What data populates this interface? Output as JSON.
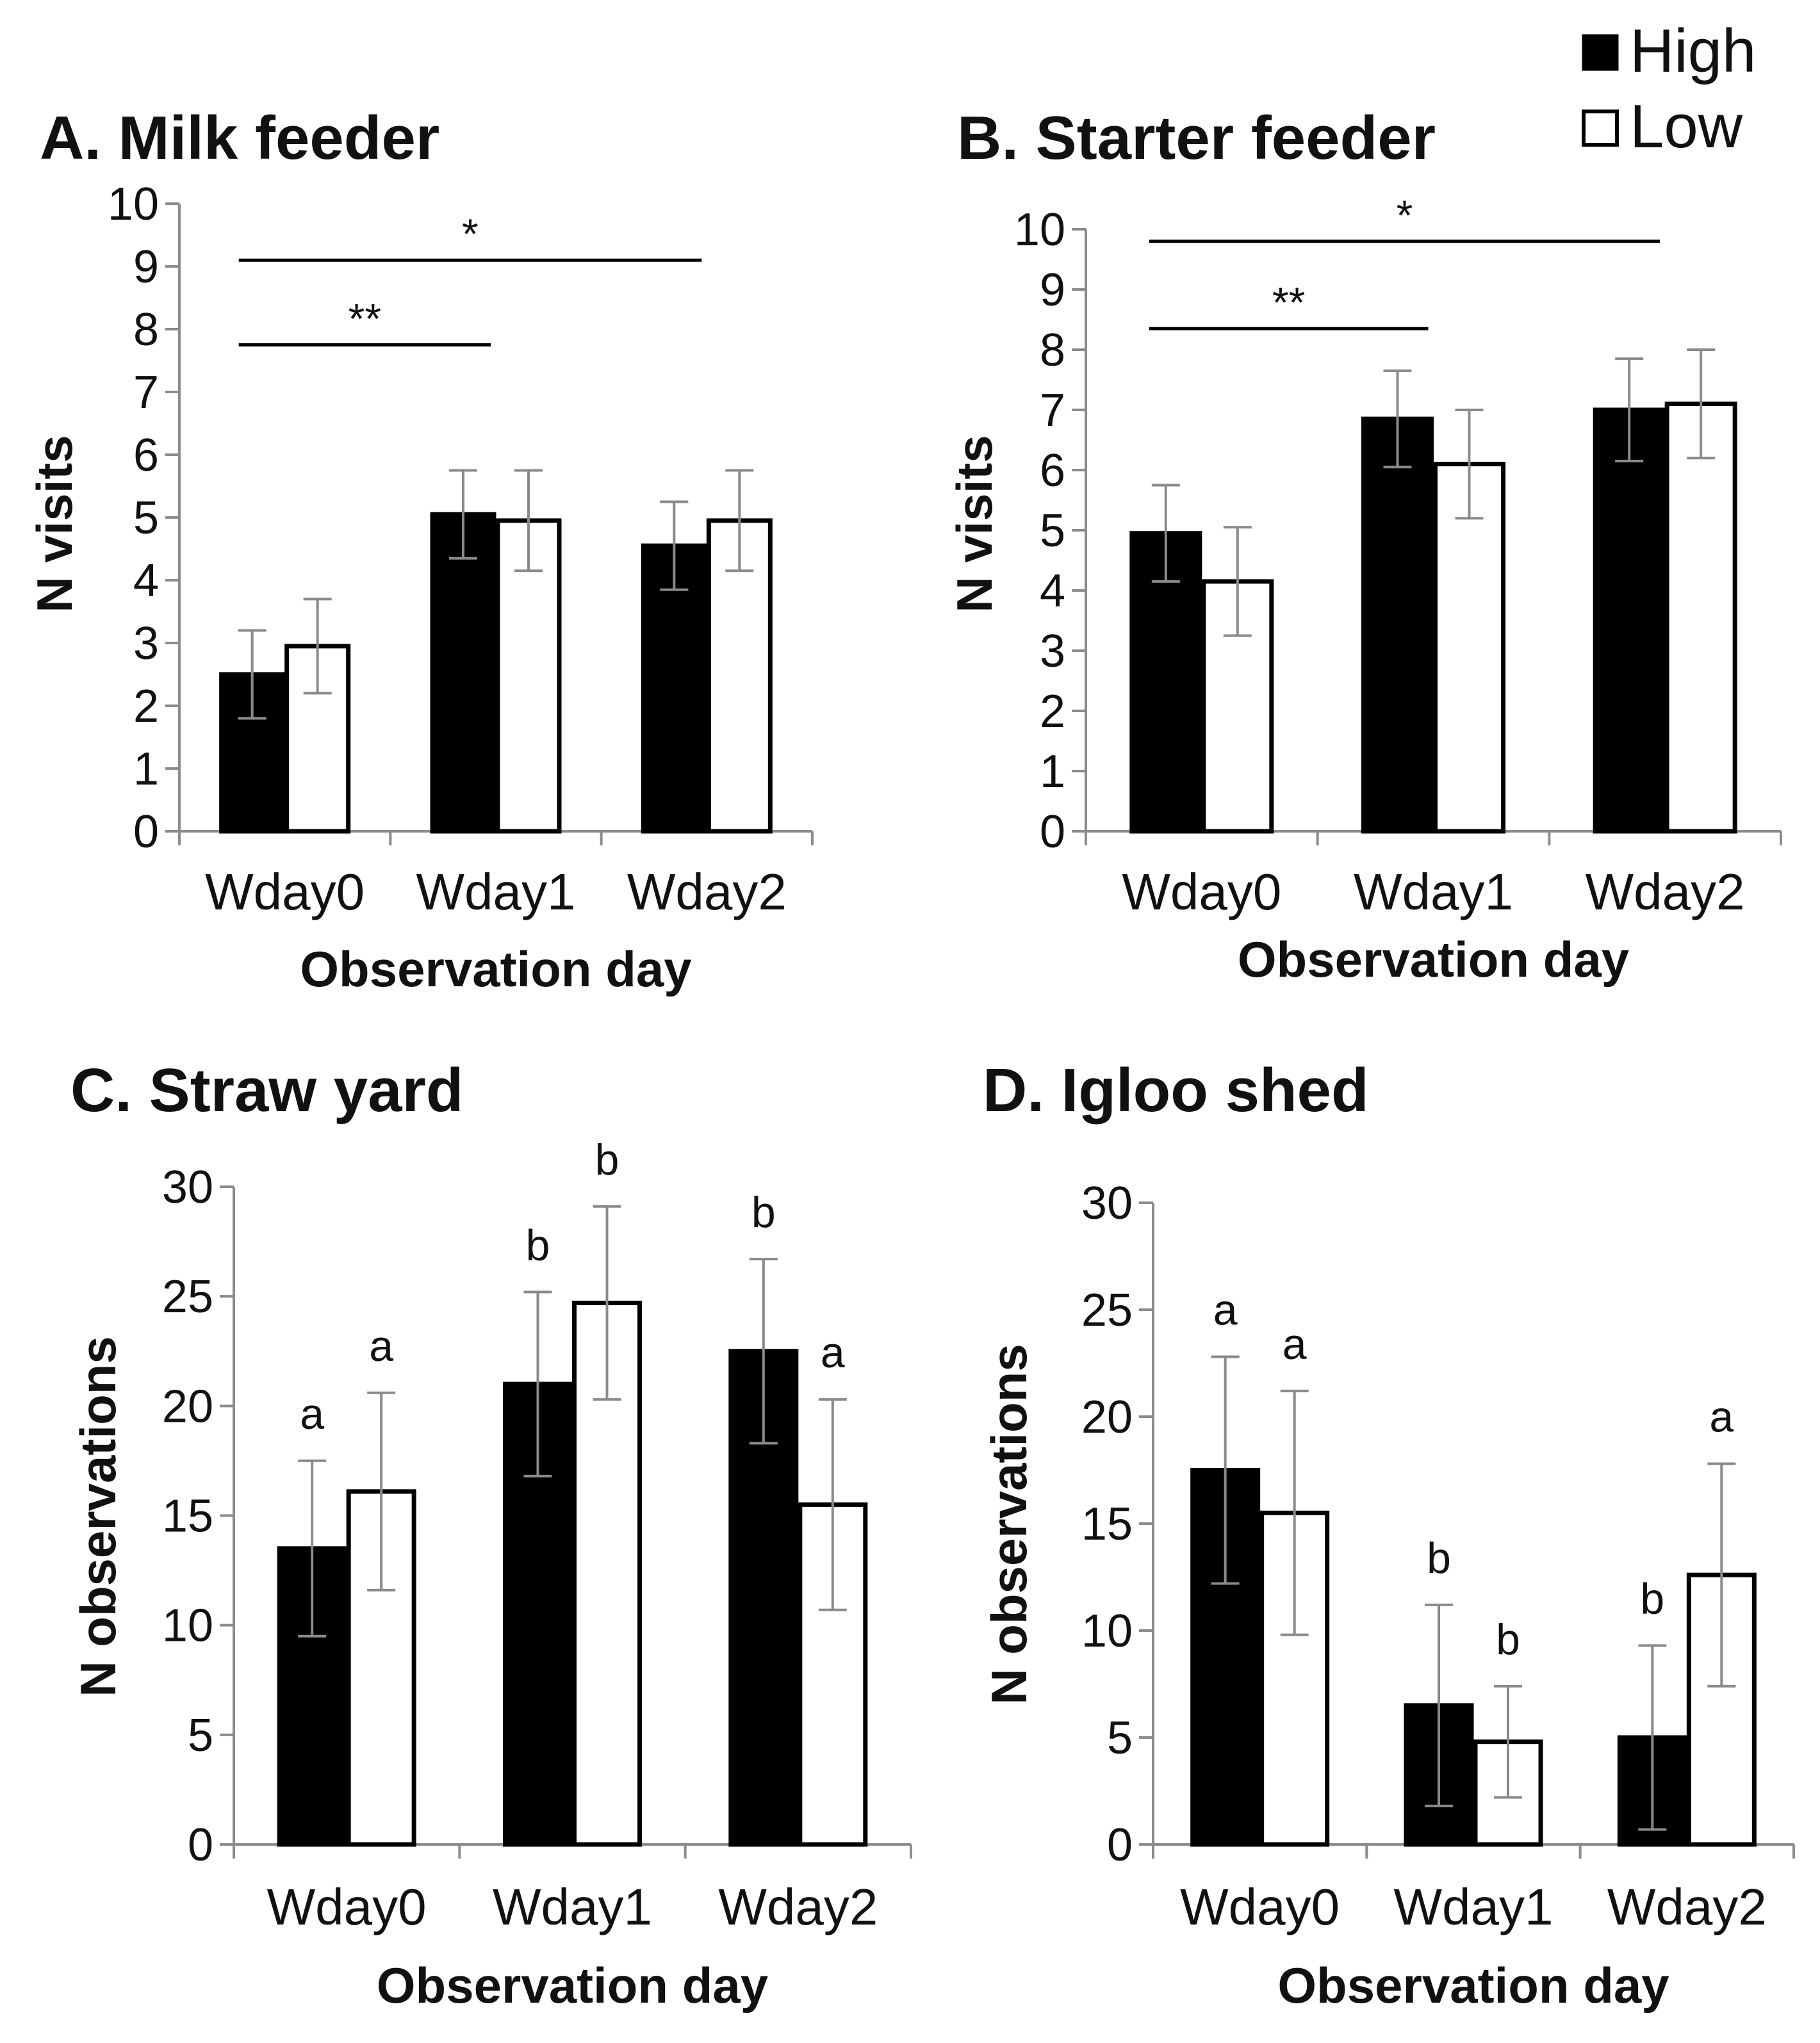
{
  "legend": [
    {
      "name": "High",
      "color": "#000000"
    },
    {
      "name": "Low",
      "color": "#ffffff"
    }
  ],
  "chart_data": [
    {
      "id": "A",
      "type": "bar",
      "title": "A. Milk feeder",
      "xlabel": "Observation day",
      "ylabel": "N visits",
      "ylim": [
        0,
        10
      ],
      "yticks": [
        0,
        1,
        2,
        3,
        4,
        5,
        6,
        7,
        8,
        9,
        10
      ],
      "categories": [
        "Wday0",
        "Wday1",
        "Wday2"
      ],
      "series": [
        {
          "name": "High",
          "values": [
            2.5,
            5.05,
            4.55
          ],
          "error": [
            0.7,
            0.7,
            0.7
          ]
        },
        {
          "name": "Low",
          "values": [
            2.95,
            4.95,
            4.95
          ],
          "error": [
            0.75,
            0.8,
            0.8
          ]
        }
      ],
      "significance": [
        {
          "from": 0,
          "to": 1,
          "label": "**",
          "y": 7.75
        },
        {
          "from": 0,
          "to": 2,
          "label": "*",
          "y": 9.1
        }
      ]
    },
    {
      "id": "B",
      "type": "bar",
      "title": "B. Starter feeder",
      "xlabel": "Observation day",
      "ylabel": "N visits",
      "ylim": [
        0,
        10
      ],
      "yticks": [
        0,
        1,
        2,
        3,
        4,
        5,
        6,
        7,
        8,
        9,
        10
      ],
      "categories": [
        "Wday0",
        "Wday1",
        "Wday2"
      ],
      "series": [
        {
          "name": "High",
          "values": [
            4.95,
            6.85,
            7.0
          ],
          "error": [
            0.8,
            0.8,
            0.85
          ]
        },
        {
          "name": "Low",
          "values": [
            4.15,
            6.1,
            7.1
          ],
          "error": [
            0.9,
            0.9,
            0.9
          ]
        }
      ],
      "significance": [
        {
          "from": 0,
          "to": 1,
          "label": "**",
          "y": 8.35
        },
        {
          "from": 0,
          "to": 2,
          "label": "*",
          "y": 9.8
        }
      ]
    },
    {
      "id": "C",
      "type": "bar",
      "title": "C. Straw yard",
      "xlabel": "Observation day",
      "ylabel": "N observations",
      "ylim": [
        0,
        30
      ],
      "yticks": [
        0,
        5,
        10,
        15,
        20,
        25,
        30
      ],
      "categories": [
        "Wday0",
        "Wday1",
        "Wday2"
      ],
      "series": [
        {
          "name": "High",
          "values": [
            13.5,
            21.0,
            22.5
          ],
          "error": [
            4.0,
            4.2,
            4.2
          ],
          "letters": [
            "a",
            "b",
            "b"
          ]
        },
        {
          "name": "Low",
          "values": [
            16.1,
            24.7,
            15.5
          ],
          "error": [
            4.5,
            4.4,
            4.8
          ],
          "letters": [
            "a",
            "b",
            "a"
          ]
        }
      ]
    },
    {
      "id": "D",
      "type": "bar",
      "title": "D. Igloo shed",
      "xlabel": "Observation day",
      "ylabel": "N observations",
      "ylim": [
        0,
        30
      ],
      "yticks": [
        0,
        5,
        10,
        15,
        20,
        25,
        30
      ],
      "categories": [
        "Wday0",
        "Wday1",
        "Wday2"
      ],
      "series": [
        {
          "name": "High",
          "values": [
            17.5,
            6.5,
            5.0
          ],
          "error": [
            5.3,
            4.7,
            4.3
          ],
          "letters": [
            "a",
            "b",
            "b"
          ]
        },
        {
          "name": "Low",
          "values": [
            15.5,
            4.8,
            12.6
          ],
          "error": [
            5.7,
            2.6,
            5.2
          ],
          "letters": [
            "a",
            "b",
            "a"
          ]
        }
      ]
    }
  ]
}
